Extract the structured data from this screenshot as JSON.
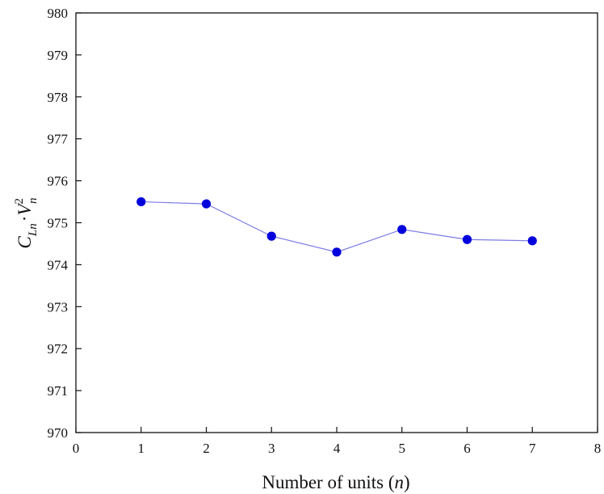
{
  "chart_data": {
    "type": "line",
    "title": "",
    "xlabel": "Number of units (n)",
    "xlabel_parts": {
      "prefix": "Number of units (",
      "var": "n",
      "suffix": ")"
    },
    "ylabel": "C_Ln·V_n^2",
    "ylabel_parts": {
      "c": "C",
      "c_sub": "Ln",
      "dot": "·",
      "v": "V",
      "v_sup": "2",
      "v_sub": "n"
    },
    "xlim": [
      0,
      8
    ],
    "ylim": [
      970,
      980
    ],
    "xticks": [
      0,
      1,
      2,
      3,
      4,
      5,
      6,
      7,
      8
    ],
    "yticks": [
      970,
      971,
      972,
      973,
      974,
      975,
      976,
      977,
      978,
      979,
      980
    ],
    "grid": false,
    "legend": "none",
    "series": [
      {
        "x": [
          1,
          2,
          3,
          4,
          5,
          6,
          7
        ],
        "y": [
          975.5,
          975.45,
          974.68,
          974.3,
          974.84,
          974.6,
          974.57
        ],
        "marker_color": "#0000dd",
        "line_color": "#7b7be6"
      }
    ]
  }
}
